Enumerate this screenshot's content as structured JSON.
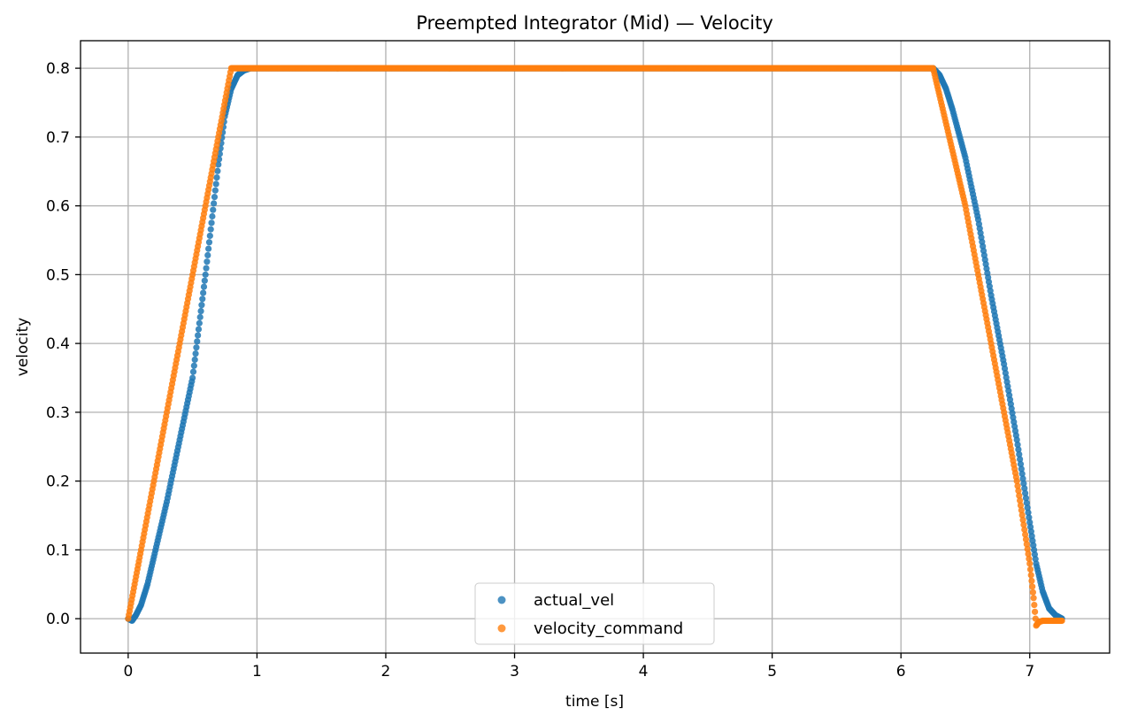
{
  "chart_data": {
    "type": "scatter",
    "title": "Preempted Integrator (Mid) — Velocity",
    "xlabel": "time [s]",
    "ylabel": "velocity",
    "xlim": [
      -0.37,
      7.62
    ],
    "ylim": [
      -0.05,
      0.84
    ],
    "xticks": [
      "0",
      "1",
      "2",
      "3",
      "4",
      "5",
      "6",
      "7"
    ],
    "yticks": [
      "0.0",
      "0.1",
      "0.2",
      "0.3",
      "0.4",
      "0.5",
      "0.6",
      "0.7",
      "0.8"
    ],
    "grid": true,
    "legend_position": "bottom-center",
    "series": [
      {
        "name": "actual_vel",
        "color": "#1f77b4",
        "points": [
          [
            0.0,
            0.0
          ],
          [
            0.03,
            -0.003
          ],
          [
            0.06,
            0.005
          ],
          [
            0.1,
            0.02
          ],
          [
            0.15,
            0.05
          ],
          [
            0.2,
            0.09
          ],
          [
            0.3,
            0.17
          ],
          [
            0.4,
            0.26
          ],
          [
            0.5,
            0.35
          ],
          [
            0.6,
            0.5
          ],
          [
            0.7,
            0.66
          ],
          [
            0.75,
            0.73
          ],
          [
            0.8,
            0.77
          ],
          [
            0.85,
            0.79
          ],
          [
            0.9,
            0.797
          ],
          [
            0.95,
            0.8
          ],
          [
            1.0,
            0.8
          ],
          [
            2.0,
            0.8
          ],
          [
            3.0,
            0.8
          ],
          [
            4.0,
            0.8
          ],
          [
            5.0,
            0.8
          ],
          [
            6.0,
            0.8
          ],
          [
            6.25,
            0.8
          ],
          [
            6.3,
            0.79
          ],
          [
            6.35,
            0.77
          ],
          [
            6.4,
            0.74
          ],
          [
            6.5,
            0.67
          ],
          [
            6.6,
            0.58
          ],
          [
            6.7,
            0.47
          ],
          [
            6.8,
            0.37
          ],
          [
            6.9,
            0.26
          ],
          [
            7.0,
            0.14
          ],
          [
            7.05,
            0.08
          ],
          [
            7.1,
            0.04
          ],
          [
            7.15,
            0.015
          ],
          [
            7.2,
            0.005
          ],
          [
            7.25,
            0.0
          ]
        ]
      },
      {
        "name": "velocity_command",
        "color": "#ff7f0e",
        "points": [
          [
            0.0,
            0.0
          ],
          [
            0.05,
            0.05
          ],
          [
            0.1,
            0.1
          ],
          [
            0.2,
            0.2
          ],
          [
            0.3,
            0.3
          ],
          [
            0.4,
            0.4
          ],
          [
            0.5,
            0.5
          ],
          [
            0.6,
            0.6
          ],
          [
            0.7,
            0.7
          ],
          [
            0.8,
            0.8
          ],
          [
            1.0,
            0.8
          ],
          [
            2.0,
            0.8
          ],
          [
            3.0,
            0.8
          ],
          [
            4.0,
            0.8
          ],
          [
            5.0,
            0.8
          ],
          [
            6.0,
            0.8
          ],
          [
            6.25,
            0.8
          ],
          [
            6.3,
            0.76
          ],
          [
            6.4,
            0.68
          ],
          [
            6.5,
            0.6
          ],
          [
            6.6,
            0.5
          ],
          [
            6.7,
            0.4
          ],
          [
            6.8,
            0.3
          ],
          [
            6.9,
            0.2
          ],
          [
            7.0,
            0.08
          ],
          [
            7.03,
            0.03
          ],
          [
            7.05,
            -0.01
          ],
          [
            7.07,
            -0.005
          ],
          [
            7.1,
            -0.003
          ],
          [
            7.25,
            -0.003
          ]
        ]
      }
    ]
  }
}
